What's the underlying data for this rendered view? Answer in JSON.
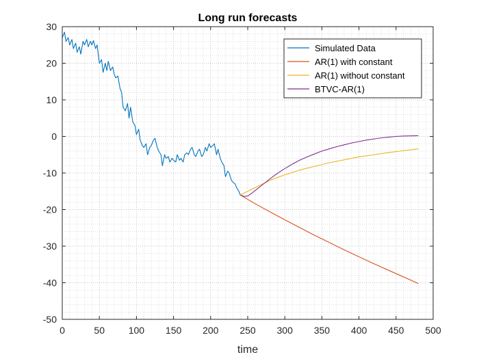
{
  "chart_data": {
    "type": "line",
    "title": "Long run forecasts",
    "xlabel": "time",
    "ylabel": "",
    "xlim": [
      0,
      500
    ],
    "ylim": [
      -50,
      30
    ],
    "xticks": [
      0,
      50,
      100,
      150,
      200,
      250,
      300,
      350,
      400,
      450,
      500
    ],
    "yticks": [
      -50,
      -40,
      -30,
      -20,
      -10,
      0,
      10,
      20,
      30
    ],
    "grid": "major and minor, dotted",
    "legend_position": "top-right",
    "series": [
      {
        "name": "Simulated Data",
        "color": "#0072BD",
        "x": [
          0,
          3,
          5,
          8,
          10,
          13,
          15,
          18,
          20,
          23,
          25,
          28,
          30,
          33,
          35,
          38,
          40,
          42,
          45,
          47,
          50,
          53,
          55,
          58,
          60,
          62,
          65,
          68,
          70,
          72,
          75,
          78,
          80,
          82,
          85,
          88,
          90,
          92,
          95,
          98,
          100,
          103,
          105,
          108,
          110,
          113,
          115,
          118,
          120,
          123,
          125,
          128,
          130,
          133,
          135,
          138,
          140,
          143,
          145,
          148,
          150,
          153,
          155,
          158,
          160,
          163,
          165,
          168,
          170,
          173,
          175,
          178,
          180,
          183,
          185,
          188,
          190,
          193,
          195,
          198,
          200,
          203,
          205,
          208,
          210,
          213,
          215,
          218,
          220,
          223,
          225,
          228,
          230,
          233,
          235,
          238,
          240
        ],
        "y": [
          27,
          28.5,
          26,
          27,
          25,
          26.5,
          24,
          25.5,
          23,
          24.5,
          22.5,
          26,
          25,
          26.5,
          24.5,
          26,
          25,
          26.2,
          24,
          25,
          20,
          21,
          17.5,
          20,
          18,
          20.5,
          18,
          19,
          17,
          16,
          16.5,
          13,
          12,
          8,
          7,
          9,
          5,
          8,
          4,
          3,
          0.5,
          2,
          -1,
          -2.5,
          -3,
          -2,
          -5,
          -3,
          -2.5,
          -1,
          -0.5,
          -3,
          -4,
          -5,
          -8,
          -5,
          -6,
          -5.5,
          -7,
          -6,
          -6.5,
          -7,
          -5,
          -6.5,
          -6,
          -7,
          -5,
          -4.5,
          -5,
          -3.5,
          -3,
          -5,
          -5.5,
          -4,
          -3.5,
          -5.5,
          -5,
          -3,
          -4,
          -2,
          -3,
          -2.5,
          -2,
          -5,
          -3.5,
          -6,
          -7,
          -8,
          -11,
          -9.5,
          -10,
          -12,
          -12.5,
          -13,
          -14,
          -15,
          -16
        ]
      },
      {
        "name": "AR(1) with constant",
        "color": "#D95319",
        "x": [
          240,
          260,
          280,
          300,
          320,
          340,
          360,
          380,
          400,
          420,
          440,
          460,
          480
        ],
        "y": [
          -16,
          -18.4,
          -20.6,
          -22.8,
          -24.9,
          -27,
          -29,
          -31,
          -32.9,
          -34.8,
          -36.6,
          -38.4,
          -40.2
        ]
      },
      {
        "name": "AR(1) without constant",
        "color": "#EDB120",
        "x": [
          240,
          260,
          280,
          300,
          320,
          340,
          360,
          380,
          400,
          420,
          440,
          460,
          480
        ],
        "y": [
          -16,
          -14,
          -12,
          -10.5,
          -9.2,
          -8.2,
          -7.2,
          -6.4,
          -5.6,
          -5,
          -4.4,
          -3.9,
          -3.4
        ]
      },
      {
        "name": "BTVC-AR(1)",
        "color": "#7E2F8E",
        "x": [
          240,
          245,
          250,
          255,
          260,
          270,
          280,
          290,
          300,
          310,
          320,
          330,
          340,
          350,
          360,
          370,
          380,
          390,
          400,
          410,
          420,
          430,
          440,
          450,
          460,
          470,
          480
        ],
        "y": [
          -16,
          -16.4,
          -16.3,
          -15.6,
          -14.8,
          -13.2,
          -11.6,
          -10.1,
          -8.8,
          -7.6,
          -6.5,
          -5.6,
          -4.8,
          -4,
          -3.4,
          -2.8,
          -2.3,
          -1.8,
          -1.4,
          -1,
          -0.7,
          -0.4,
          -0.2,
          0,
          0.1,
          0.15,
          0.2
        ]
      }
    ]
  }
}
